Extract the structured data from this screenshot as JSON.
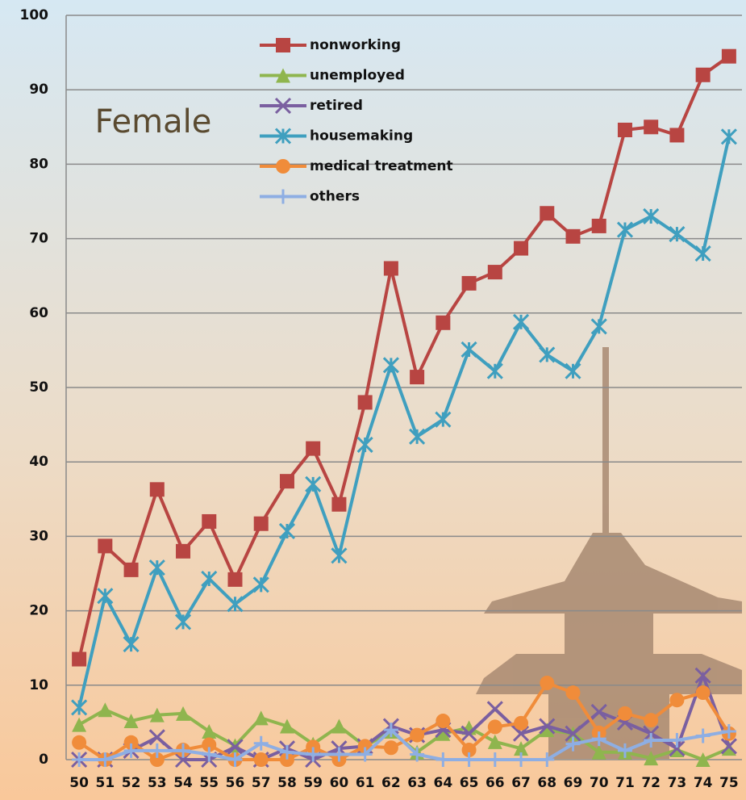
{
  "chart_data": {
    "type": "line",
    "annotation": "Female",
    "categories": [
      "50",
      "51",
      "52",
      "53",
      "54",
      "55",
      "56",
      "57",
      "58",
      "59",
      "60",
      "61",
      "62",
      "63",
      "64",
      "65",
      "66",
      "67",
      "68",
      "69",
      "70",
      "71",
      "72",
      "73",
      "74",
      "75"
    ],
    "series": [
      {
        "name": "nonworking",
        "color": "#b84542",
        "marker": "square",
        "values": [
          13.5,
          28.7,
          25.5,
          36.3,
          28,
          32,
          24.2,
          31.7,
          37.4,
          41.8,
          34.3,
          48,
          66,
          51.4,
          58.7,
          64,
          65.5,
          68.7,
          73.4,
          70.3,
          71.7,
          84.6,
          85,
          83.9,
          92,
          94.5
        ]
      },
      {
        "name": "unemployed",
        "color": "#8fb54e",
        "marker": "triangle",
        "values": [
          4.7,
          6.7,
          5.2,
          6,
          6.2,
          3.8,
          1.9,
          5.6,
          4.5,
          2.1,
          4.5,
          1.8,
          3.8,
          1,
          3.5,
          4.3,
          2.4,
          1.5,
          4,
          3.5,
          1,
          1,
          0.2,
          1.3,
          0,
          1.5
        ]
      },
      {
        "name": "retired",
        "color": "#7a5fa0",
        "marker": "x",
        "values": [
          0,
          0,
          1.2,
          3,
          0,
          0,
          1.7,
          0,
          1.5,
          0,
          1.5,
          1.8,
          4.5,
          3.3,
          4,
          3.5,
          6.8,
          3.5,
          4.5,
          3.5,
          6.4,
          5,
          3.5,
          1.5,
          11.3,
          1.8
        ]
      },
      {
        "name": "housemaking",
        "color": "#3f9fbf",
        "marker": "asterisk",
        "values": [
          7,
          22,
          15.5,
          25.8,
          18.5,
          24.3,
          20.9,
          23.5,
          30.7,
          37,
          27.4,
          42.3,
          53,
          43.4,
          45.7,
          55.1,
          52.2,
          58.8,
          54.4,
          52.2,
          58.2,
          71.2,
          73,
          70.6,
          68,
          83.7
        ]
      },
      {
        "name": "medical treatment",
        "color": "#f08c3a",
        "marker": "circle",
        "values": [
          2.3,
          0,
          2.3,
          0,
          1.3,
          2,
          0,
          0,
          0,
          1.7,
          0,
          1.8,
          1.6,
          3.3,
          5.2,
          1.3,
          4.4,
          4.9,
          10.3,
          9,
          3.6,
          6.2,
          5.3,
          8,
          9,
          3.5
        ]
      },
      {
        "name": "others",
        "color": "#8eaee3",
        "marker": "plus",
        "values": [
          0,
          0,
          1.2,
          1.2,
          1.2,
          0.7,
          0,
          2.2,
          1,
          0.7,
          0.7,
          0.7,
          4,
          0.7,
          0,
          0,
          0,
          0,
          0,
          2.1,
          2.8,
          1.2,
          2.6,
          2.6,
          3.2,
          3.8
        ]
      }
    ],
    "ylim": [
      0,
      100
    ],
    "yticks": [
      0,
      10,
      20,
      30,
      40,
      50,
      60,
      70,
      80,
      90,
      100
    ],
    "grid": true,
    "legend": "top"
  }
}
